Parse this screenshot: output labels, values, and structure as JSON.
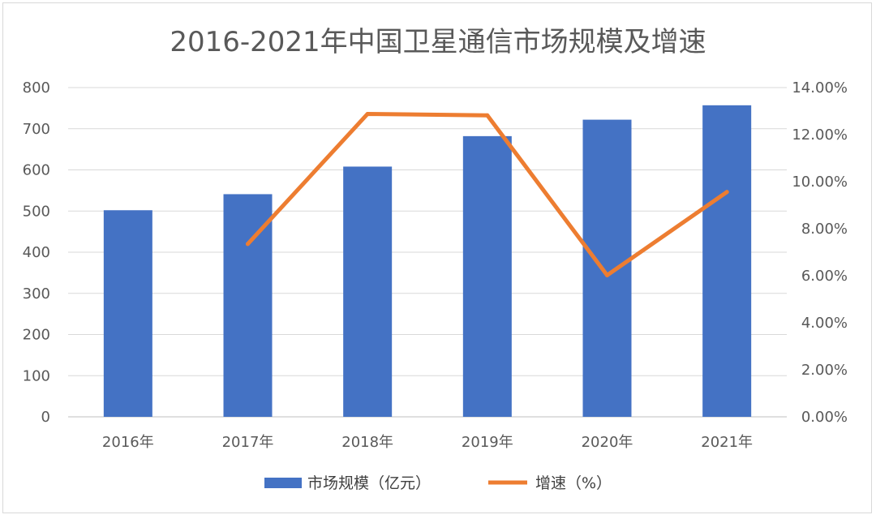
{
  "chart_data": {
    "type": "bar",
    "title": "2016-2021年中国卫星通信市场规模及增速",
    "categories": [
      "2016年",
      "2017年",
      "2018年",
      "2019年",
      "2020年",
      "2021年"
    ],
    "series": [
      {
        "name": "市场规模（亿元）",
        "type": "bar",
        "axis": "left",
        "color": "#4472c4",
        "values": [
          502,
          541,
          608,
          682,
          722,
          757
        ]
      },
      {
        "name": "增速（%）",
        "type": "line",
        "axis": "right",
        "color": "#ed7d31",
        "values": [
          null,
          0.0735,
          0.1288,
          0.1282,
          0.0602,
          0.0956
        ]
      }
    ],
    "y_left": {
      "ylim": [
        0,
        800
      ],
      "ticks": [
        "0",
        "100",
        "200",
        "300",
        "400",
        "500",
        "600",
        "700",
        "800"
      ]
    },
    "y_right": {
      "ylim": [
        0,
        0.14
      ],
      "ticks": [
        "0.00%",
        "2.00%",
        "4.00%",
        "6.00%",
        "8.00%",
        "10.00%",
        "12.00%",
        "14.00%"
      ]
    },
    "grid": true,
    "legend_position": "bottom"
  }
}
